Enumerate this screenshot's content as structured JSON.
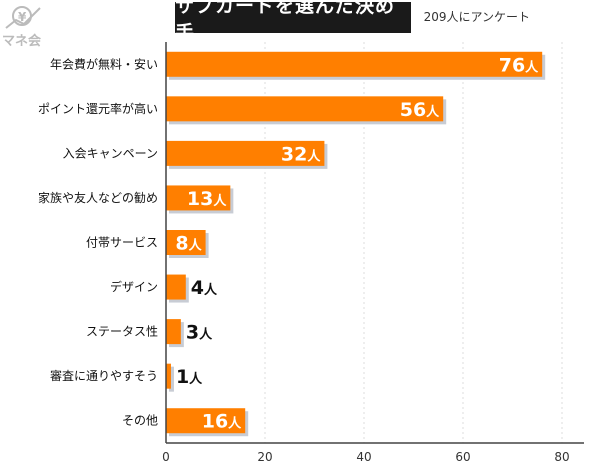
{
  "chart_data": {
    "type": "bar",
    "orientation": "horizontal",
    "title": "サブカードを選んだ決め手",
    "subtitle": "209人にアンケート",
    "categories": [
      "年会費が無料・安い",
      "ポイント還元率が高い",
      "入会キャンペーン",
      "家族や友人などの勧め",
      "付帯サービス",
      "デザイン",
      "ステータス性",
      "審査に通りやすそう",
      "その他"
    ],
    "values": [
      76,
      56,
      32,
      13,
      8,
      4,
      3,
      1,
      16
    ],
    "unit": "人",
    "xlim": [
      0,
      80
    ],
    "xticks": [
      0,
      20,
      40,
      60,
      80
    ],
    "grid": true,
    "bar_color": "#ff7f00",
    "shadow_color": "#c8ccd4"
  },
  "logo": {
    "text": "マネ会",
    "symbol": "¥"
  }
}
